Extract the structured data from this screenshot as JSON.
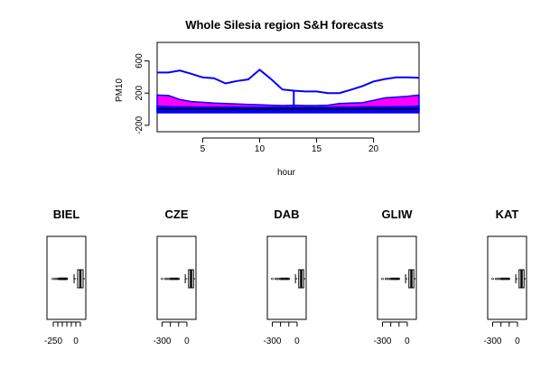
{
  "chart_data": [
    {
      "type": "area",
      "title": "Whole Silesia region S&H forecasts",
      "xlabel": "hour",
      "ylabel": "PM10",
      "xlim": [
        1,
        24
      ],
      "ylim": [
        -280,
        830
      ],
      "x_ticks": [
        5,
        10,
        15,
        20
      ],
      "x_tick_labels": [
        "5",
        "10",
        "15",
        "20"
      ],
      "y_ticks": [
        -200,
        200,
        600
      ],
      "y_tick_labels": [
        "-200",
        "200",
        "600"
      ],
      "x": [
        1,
        2,
        3,
        4,
        5,
        6,
        7,
        8,
        9,
        10,
        11,
        12,
        13,
        14,
        15,
        16,
        17,
        18,
        19,
        20,
        21,
        22,
        23,
        24
      ],
      "upper_line": {
        "color": "#0000ff",
        "values": [
          455,
          455,
          480,
          440,
          395,
          385,
          320,
          350,
          370,
          490,
          375,
          245,
          230,
          220,
          220,
          200,
          200,
          240,
          285,
          345,
          375,
          395,
          395,
          390
        ]
      },
      "band": {
        "color": "#ff00ff",
        "upper": [
          175,
          170,
          120,
          95,
          85,
          75,
          70,
          65,
          60,
          55,
          50,
          45,
          50,
          45,
          45,
          50,
          70,
          75,
          80,
          110,
          140,
          150,
          160,
          175
        ],
        "lower": [
          -20,
          -20,
          -20,
          -20,
          -20,
          -20,
          -20,
          -20,
          -20,
          -20,
          -20,
          -20,
          -20,
          -20,
          -20,
          -20,
          -20,
          -20,
          -20,
          -20,
          -20,
          -20,
          -20,
          -20
        ]
      },
      "lower_band": {
        "color": "#0000ff",
        "upper": [
          35,
          33,
          30,
          28,
          26,
          25,
          25,
          25,
          24,
          24,
          24,
          24,
          24,
          24,
          24,
          24,
          25,
          26,
          28,
          30,
          30,
          32,
          33,
          35
        ],
        "lower": [
          -45,
          -45,
          -45,
          -45,
          -45,
          -45,
          -45,
          -45,
          -45,
          -45,
          -45,
          -45,
          -45,
          -45,
          -45,
          -45,
          -45,
          -45,
          -45,
          -45,
          -45,
          -45,
          -45,
          -45
        ]
      },
      "mid_line": {
        "color": "#000000",
        "values": [
          5,
          5,
          5,
          5,
          5,
          5,
          5,
          5,
          5,
          5,
          5,
          5,
          5,
          5,
          5,
          5,
          5,
          5,
          5,
          5,
          5,
          5,
          5,
          5
        ]
      },
      "drop_segment": {
        "x": 13,
        "from": 230,
        "to": 30,
        "color": "#0000ff"
      },
      "grid": false,
      "legend": false
    },
    {
      "type": "boxplot",
      "title": "BIEL",
      "ylim": [
        -320,
        110
      ],
      "ticks": [
        -250,
        -200,
        -150,
        -100,
        -50,
        0,
        50
      ],
      "tick_labels": [
        "-250",
        "0"
      ],
      "box": {
        "q1": 20,
        "median": 50,
        "q3": 80,
        "whisker_low": -20,
        "whisker_high": 100
      },
      "outliers": [
        -255,
        -230,
        -210,
        -195,
        -185,
        -175,
        -170,
        -165,
        -160,
        -155,
        -150,
        -145,
        -140,
        -135,
        -130,
        -125,
        -120,
        -115,
        -110,
        -105,
        -100
      ]
    },
    {
      "type": "boxplot",
      "title": "CZE",
      "ylim": [
        -360,
        110
      ],
      "ticks": [
        -300,
        -200,
        -100,
        0
      ],
      "tick_labels": [
        "-300",
        "0"
      ],
      "box": {
        "q1": 20,
        "median": 50,
        "q3": 80,
        "whisker_low": -20,
        "whisker_high": 100
      },
      "outliers": [
        -300,
        -260,
        -240,
        -220,
        -200,
        -190,
        -180,
        -170,
        -160,
        -150,
        -140,
        -130,
        -120,
        -110,
        -100
      ]
    },
    {
      "type": "boxplot",
      "title": "DAB",
      "ylim": [
        -360,
        110
      ],
      "ticks": [
        -300,
        -200,
        -100,
        0
      ],
      "tick_labels": [
        "-300",
        "0"
      ],
      "box": {
        "q1": 20,
        "median": 50,
        "q3": 80,
        "whisker_low": -20,
        "whisker_high": 100
      },
      "outliers": [
        -300,
        -260,
        -240,
        -220,
        -200,
        -190,
        -180,
        -170,
        -160,
        -150,
        -140,
        -130,
        -120,
        -110,
        -100
      ]
    },
    {
      "type": "boxplot",
      "title": "GLIW",
      "ylim": [
        -360,
        110
      ],
      "ticks": [
        -300,
        -200,
        -100,
        0
      ],
      "tick_labels": [
        "-300",
        "0"
      ],
      "box": {
        "q1": 20,
        "median": 50,
        "q3": 80,
        "whisker_low": -20,
        "whisker_high": 100
      },
      "outliers": [
        -300,
        -260,
        -240,
        -220,
        -200,
        -190,
        -180,
        -170,
        -160,
        -150,
        -140,
        -130,
        -120,
        -110,
        -100
      ]
    },
    {
      "type": "boxplot",
      "title": "KAT",
      "ylim": [
        -360,
        110
      ],
      "ticks": [
        -300,
        -200,
        -100,
        0
      ],
      "tick_labels": [
        "-300",
        "0"
      ],
      "box": {
        "q1": 20,
        "median": 50,
        "q3": 80,
        "whisker_low": -20,
        "whisker_high": 100
      },
      "outliers": [
        -300,
        -260,
        -240,
        -220,
        -200,
        -190,
        -180,
        -170,
        -160,
        -150,
        -140,
        -130,
        -120,
        -110,
        -100
      ]
    }
  ]
}
